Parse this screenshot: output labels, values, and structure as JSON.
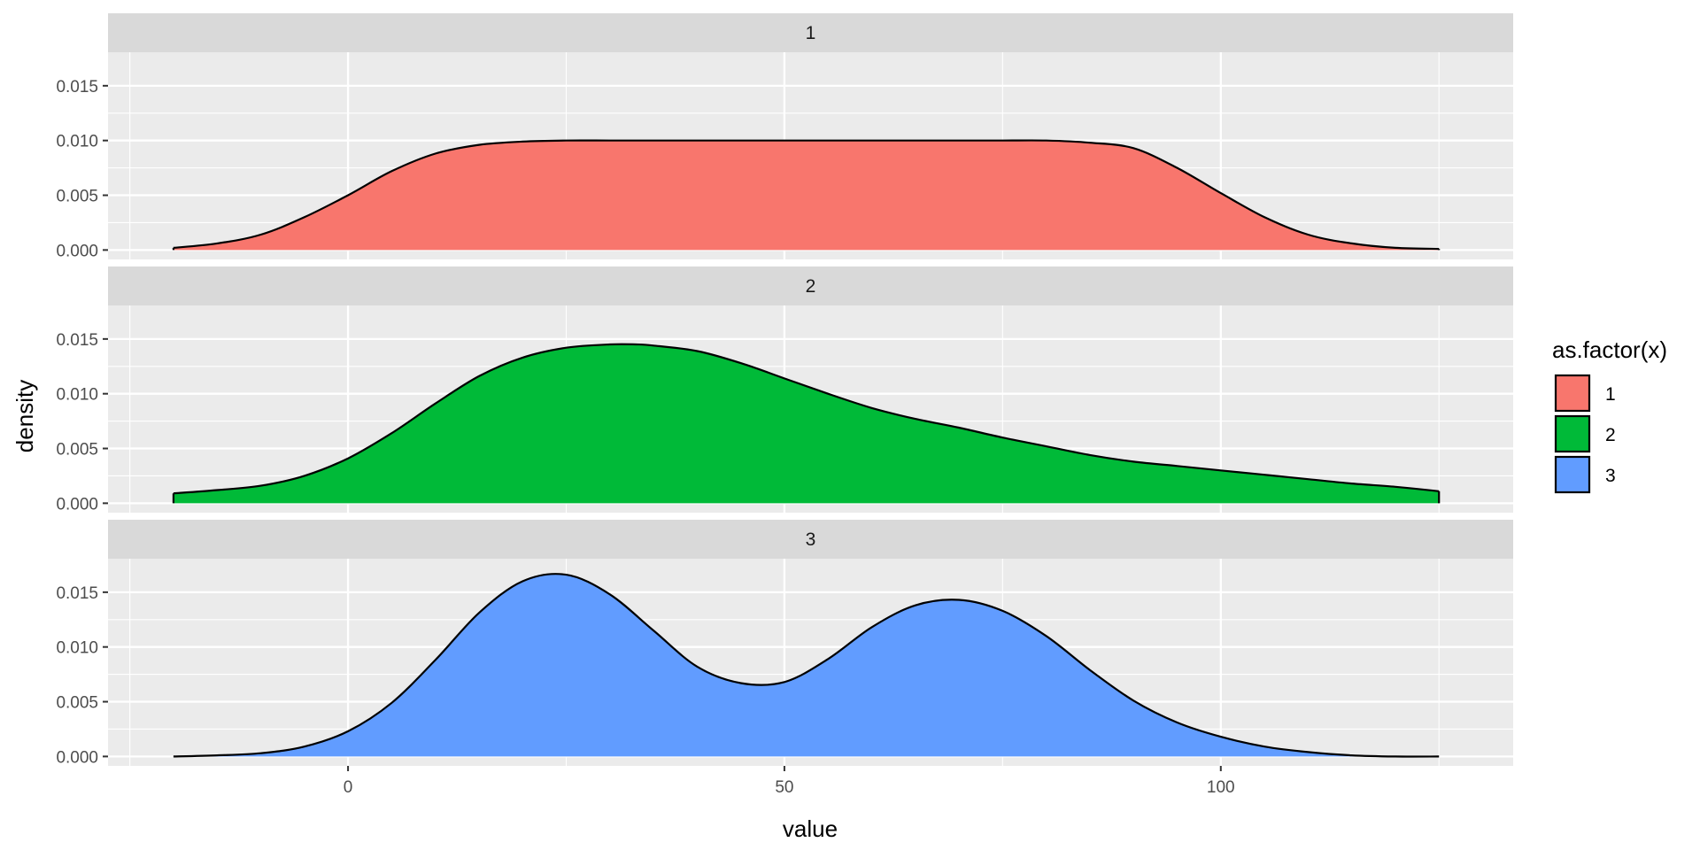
{
  "chart_data": {
    "type": "area",
    "subtype": "density-facets",
    "xlabel": "value",
    "ylabel": "density",
    "xlim": [
      -27.5,
      133.5
    ],
    "ylim": [
      -0.00086,
      0.01806
    ],
    "x_ticks": [
      0,
      50,
      100
    ],
    "x_tick_labels": [
      "0",
      "50",
      "100"
    ],
    "y_ticks": [
      0,
      0.005,
      0.01,
      0.015
    ],
    "y_tick_labels": [
      "0.000",
      "0.005",
      "0.010",
      "0.015"
    ],
    "grid": true,
    "legend": {
      "title": "as.factor(x)",
      "position": "right",
      "entries": [
        {
          "label": "1",
          "color": "#F8766D"
        },
        {
          "label": "2",
          "color": "#00BA38"
        },
        {
          "label": "3",
          "color": "#619CFF"
        }
      ]
    },
    "panels": [
      {
        "strip": "1",
        "color": "#F8766D",
        "x": [
          -20,
          -15,
          -10,
          -5,
          0,
          5,
          10,
          15,
          20,
          25,
          30,
          35,
          40,
          45,
          50,
          55,
          60,
          65,
          70,
          75,
          80,
          85,
          90,
          95,
          100,
          105,
          110,
          115,
          120,
          125
        ],
        "y": [
          0.0002,
          0.0006,
          0.0014,
          0.003,
          0.005,
          0.0072,
          0.0088,
          0.0096,
          0.0099,
          0.01,
          0.01,
          0.01,
          0.01,
          0.01,
          0.01,
          0.01,
          0.01,
          0.01,
          0.01,
          0.01,
          0.01,
          0.0098,
          0.0093,
          0.0075,
          0.0052,
          0.003,
          0.0014,
          0.0006,
          0.0002,
          0.0001
        ]
      },
      {
        "strip": "2",
        "color": "#00BA38",
        "x": [
          -20,
          -15,
          -10,
          -5,
          0,
          5,
          10,
          15,
          20,
          25,
          30,
          33,
          35,
          40,
          45,
          50,
          55,
          60,
          65,
          70,
          75,
          80,
          85,
          90,
          95,
          100,
          105,
          110,
          115,
          120,
          125
        ],
        "y": [
          0.0009,
          0.0012,
          0.0016,
          0.0025,
          0.0041,
          0.0064,
          0.0091,
          0.0116,
          0.0133,
          0.0142,
          0.0145,
          0.0145,
          0.0144,
          0.0139,
          0.0128,
          0.0114,
          0.01,
          0.0087,
          0.0077,
          0.0069,
          0.006,
          0.0052,
          0.0044,
          0.0038,
          0.0034,
          0.003,
          0.0026,
          0.0022,
          0.0018,
          0.0015,
          0.0011
        ]
      },
      {
        "strip": "3",
        "color": "#619CFF",
        "x": [
          -20,
          -15,
          -10,
          -5,
          0,
          5,
          10,
          15,
          20,
          25,
          30,
          35,
          40,
          45,
          50,
          55,
          60,
          65,
          70,
          75,
          80,
          85,
          90,
          95,
          100,
          105,
          110,
          115,
          120,
          125
        ],
        "y": [
          0.0,
          0.0001,
          0.0003,
          0.0009,
          0.0023,
          0.0049,
          0.0088,
          0.0131,
          0.016,
          0.0166,
          0.0148,
          0.0115,
          0.0082,
          0.0067,
          0.0068,
          0.0089,
          0.0118,
          0.0138,
          0.0143,
          0.0133,
          0.011,
          0.0079,
          0.0051,
          0.0031,
          0.0018,
          0.0009,
          0.0004,
          0.0001,
          0.0,
          0.0
        ]
      }
    ]
  }
}
